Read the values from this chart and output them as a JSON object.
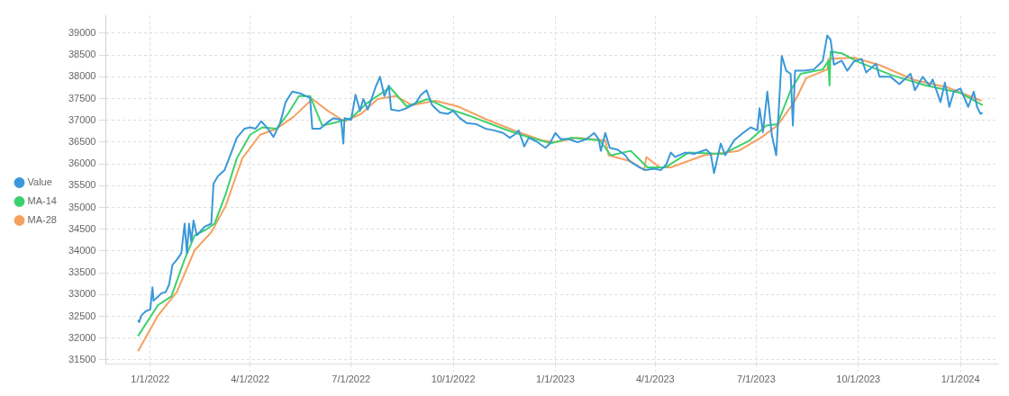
{
  "chart_data": {
    "type": "line",
    "legend": "left",
    "grid": true,
    "xlim": [
      "2021-11-22",
      "2024-02-04"
    ],
    "ylim": [
      31400,
      39400
    ],
    "xticks": [
      {
        "value": "2022-01-01",
        "label": "1/1/2022"
      },
      {
        "value": "2022-04-01",
        "label": "4/1/2022"
      },
      {
        "value": "2022-07-01",
        "label": "7/1/2022"
      },
      {
        "value": "2022-10-01",
        "label": "10/1/2022"
      },
      {
        "value": "2023-01-01",
        "label": "1/1/2023"
      },
      {
        "value": "2023-04-01",
        "label": "4/1/2023"
      },
      {
        "value": "2023-07-01",
        "label": "7/1/2023"
      },
      {
        "value": "2023-10-01",
        "label": "10/1/2023"
      },
      {
        "value": "2024-01-01",
        "label": "1/1/2024"
      }
    ],
    "yticks": [
      31500,
      32000,
      32500,
      33000,
      33500,
      34000,
      34500,
      35000,
      35500,
      36000,
      36500,
      37000,
      37500,
      38000,
      38500,
      39000
    ],
    "series": [
      {
        "name": "Value",
        "color": "#3a98d8",
        "x": [
          "2021-12-21",
          "2021-12-22",
          "2021-12-24",
          "2021-12-28",
          "2022-01-01",
          "2022-01-03",
          "2022-01-04",
          "2022-01-07",
          "2022-01-11",
          "2022-01-15",
          "2022-01-18",
          "2022-01-21",
          "2022-01-25",
          "2022-01-29",
          "2022-02-01",
          "2022-02-03",
          "2022-02-05",
          "2022-02-07",
          "2022-02-09",
          "2022-02-12",
          "2022-02-19",
          "2022-02-25",
          "2022-02-27",
          "2022-03-03",
          "2022-03-09",
          "2022-03-15",
          "2022-03-20",
          "2022-03-27",
          "2022-04-01",
          "2022-04-06",
          "2022-04-11",
          "2022-04-17",
          "2022-04-22",
          "2022-04-28",
          "2022-05-03",
          "2022-05-09",
          "2022-05-16",
          "2022-05-21",
          "2022-05-25",
          "2022-05-27",
          "2022-06-03",
          "2022-06-09",
          "2022-06-15",
          "2022-06-22",
          "2022-06-24",
          "2022-06-25",
          "2022-07-01",
          "2022-07-05",
          "2022-07-09",
          "2022-07-12",
          "2022-07-16",
          "2022-07-23",
          "2022-07-27",
          "2022-07-31",
          "2022-08-04",
          "2022-08-06",
          "2022-08-13",
          "2022-08-20",
          "2022-08-28",
          "2022-09-02",
          "2022-09-07",
          "2022-09-12",
          "2022-09-19",
          "2022-09-26",
          "2022-10-01",
          "2022-10-07",
          "2022-10-13",
          "2022-10-22",
          "2022-10-30",
          "2022-11-07",
          "2022-11-15",
          "2022-11-21",
          "2022-11-25",
          "2022-11-29",
          "2022-12-04",
          "2022-12-08",
          "2022-12-16",
          "2022-12-23",
          "2022-12-27",
          "2023-01-01",
          "2023-01-06",
          "2023-01-13",
          "2023-01-21",
          "2023-01-29",
          "2023-02-05",
          "2023-02-09",
          "2023-02-11",
          "2023-02-15",
          "2023-02-19",
          "2023-02-26",
          "2023-03-05",
          "2023-03-09",
          "2023-03-18",
          "2023-03-23",
          "2023-03-31",
          "2023-04-06",
          "2023-04-11",
          "2023-04-15",
          "2023-04-19",
          "2023-04-28",
          "2023-05-06",
          "2023-05-17",
          "2023-05-21",
          "2023-05-24",
          "2023-05-30",
          "2023-06-03",
          "2023-06-11",
          "2023-06-19",
          "2023-06-26",
          "2023-07-02",
          "2023-07-04",
          "2023-07-07",
          "2023-07-11",
          "2023-07-15",
          "2023-07-19",
          "2023-07-24",
          "2023-07-28",
          "2023-08-01",
          "2023-08-03",
          "2023-08-05",
          "2023-08-13",
          "2023-08-22",
          "2023-08-30",
          "2023-09-03",
          "2023-09-06",
          "2023-09-09",
          "2023-09-16",
          "2023-09-21",
          "2023-09-27",
          "2023-10-04",
          "2023-10-08",
          "2023-10-17",
          "2023-10-20",
          "2023-10-30",
          "2023-11-07",
          "2023-11-17",
          "2023-11-21",
          "2023-11-28",
          "2023-12-04",
          "2023-12-07",
          "2023-12-14",
          "2023-12-18",
          "2023-12-22",
          "2023-12-26",
          "2024-01-01",
          "2024-01-08",
          "2024-01-13",
          "2024-01-16",
          "2024-01-19",
          "2024-01-21"
        ],
        "values": [
          32420,
          32370,
          32520,
          32620,
          32660,
          33170,
          32860,
          32930,
          33030,
          33060,
          33230,
          33680,
          33800,
          33950,
          34630,
          33950,
          34630,
          34220,
          34700,
          34360,
          34560,
          34630,
          35550,
          35720,
          35860,
          36260,
          36600,
          36810,
          36840,
          36810,
          36980,
          36810,
          36620,
          36940,
          37420,
          37660,
          37620,
          37560,
          37520,
          36810,
          36810,
          36940,
          37050,
          37010,
          36470,
          37050,
          37010,
          37590,
          37220,
          37490,
          37250,
          37760,
          38000,
          37560,
          37800,
          37250,
          37220,
          37280,
          37390,
          37590,
          37690,
          37350,
          37180,
          37150,
          37220,
          37050,
          36940,
          36910,
          36810,
          36770,
          36710,
          36600,
          36670,
          36770,
          36400,
          36600,
          36500,
          36370,
          36470,
          36710,
          36570,
          36570,
          36500,
          36570,
          36710,
          36570,
          36300,
          36710,
          36370,
          36330,
          36200,
          36060,
          35920,
          35860,
          35890,
          35860,
          35990,
          36260,
          36160,
          36260,
          36230,
          36330,
          36230,
          35790,
          36470,
          36200,
          36540,
          36710,
          36840,
          36770,
          37280,
          36730,
          37660,
          36670,
          36200,
          38480,
          38140,
          38070,
          36880,
          38140,
          38140,
          38170,
          38370,
          38950,
          38850,
          38280,
          38370,
          38140,
          38350,
          38410,
          38100,
          38300,
          38000,
          38000,
          37830,
          38070,
          37690,
          38000,
          37800,
          37940,
          37420,
          37870,
          37310,
          37660,
          37730,
          37310,
          37660,
          37310,
          37150,
          37180
        ]
      },
      {
        "name": "MA-14",
        "color": "#3dd16c",
        "x": [
          "2021-12-21",
          "2022-01-08",
          "2022-01-20",
          "2022-02-01",
          "2022-02-10",
          "2022-02-20",
          "2022-02-28",
          "2022-03-10",
          "2022-03-20",
          "2022-04-01",
          "2022-04-12",
          "2022-04-25",
          "2022-05-05",
          "2022-05-15",
          "2022-05-25",
          "2022-06-05",
          "2022-06-15",
          "2022-07-01",
          "2022-07-15",
          "2022-08-05",
          "2022-08-20",
          "2022-09-08",
          "2022-09-25",
          "2022-10-15",
          "2022-11-15",
          "2022-12-01",
          "2022-12-28",
          "2023-01-15",
          "2023-02-10",
          "2023-02-20",
          "2023-03-10",
          "2023-03-25",
          "2023-04-10",
          "2023-05-01",
          "2023-06-01",
          "2023-06-25",
          "2023-07-10",
          "2023-07-20",
          "2023-08-01",
          "2023-08-10",
          "2023-08-30",
          "2023-09-04",
          "2023-09-05",
          "2023-09-06",
          "2023-09-16",
          "2023-10-01",
          "2023-11-01",
          "2023-12-01",
          "2024-01-01",
          "2024-01-21"
        ],
        "values": [
          32050,
          32760,
          32960,
          33810,
          34360,
          34490,
          34630,
          35310,
          36130,
          36670,
          36840,
          36810,
          37150,
          37560,
          37560,
          36880,
          36940,
          37050,
          37390,
          37760,
          37320,
          37490,
          37280,
          37110,
          36810,
          36670,
          36470,
          36600,
          36540,
          36200,
          36300,
          35920,
          35920,
          36260,
          36230,
          36540,
          36880,
          36910,
          37690,
          38070,
          38170,
          38370,
          37800,
          38580,
          38540,
          38340,
          38030,
          37800,
          37630,
          37350
        ]
      },
      {
        "name": "MA-28",
        "color": "#f4a160",
        "x": [
          "2021-12-21",
          "2022-01-08",
          "2022-01-25",
          "2022-02-10",
          "2022-02-25",
          "2022-03-10",
          "2022-03-25",
          "2022-04-10",
          "2022-04-25",
          "2022-05-10",
          "2022-05-27",
          "2022-06-10",
          "2022-06-25",
          "2022-07-10",
          "2022-07-25",
          "2022-08-10",
          "2022-08-25",
          "2022-09-15",
          "2022-10-05",
          "2022-11-01",
          "2022-11-28",
          "2022-12-20",
          "2023-01-01",
          "2023-01-20",
          "2023-02-15",
          "2023-02-18",
          "2023-03-10",
          "2023-03-22",
          "2023-03-24",
          "2023-04-05",
          "2023-04-15",
          "2023-05-15",
          "2023-06-15",
          "2023-07-05",
          "2023-07-20",
          "2023-08-05",
          "2023-08-15",
          "2023-09-03",
          "2023-09-04",
          "2023-09-27",
          "2023-10-20",
          "2023-11-20",
          "2023-12-20",
          "2024-01-20"
        ],
        "values": [
          31700,
          32520,
          33060,
          34020,
          34430,
          35040,
          36130,
          36670,
          36810,
          37080,
          37490,
          37220,
          36980,
          37150,
          37490,
          37560,
          37350,
          37450,
          37320,
          37010,
          36740,
          36540,
          36500,
          36600,
          36540,
          36200,
          36060,
          35860,
          36160,
          35920,
          35920,
          36200,
          36300,
          36600,
          36880,
          37450,
          37970,
          38170,
          38410,
          38440,
          38270,
          37930,
          37760,
          37450
        ]
      }
    ]
  }
}
